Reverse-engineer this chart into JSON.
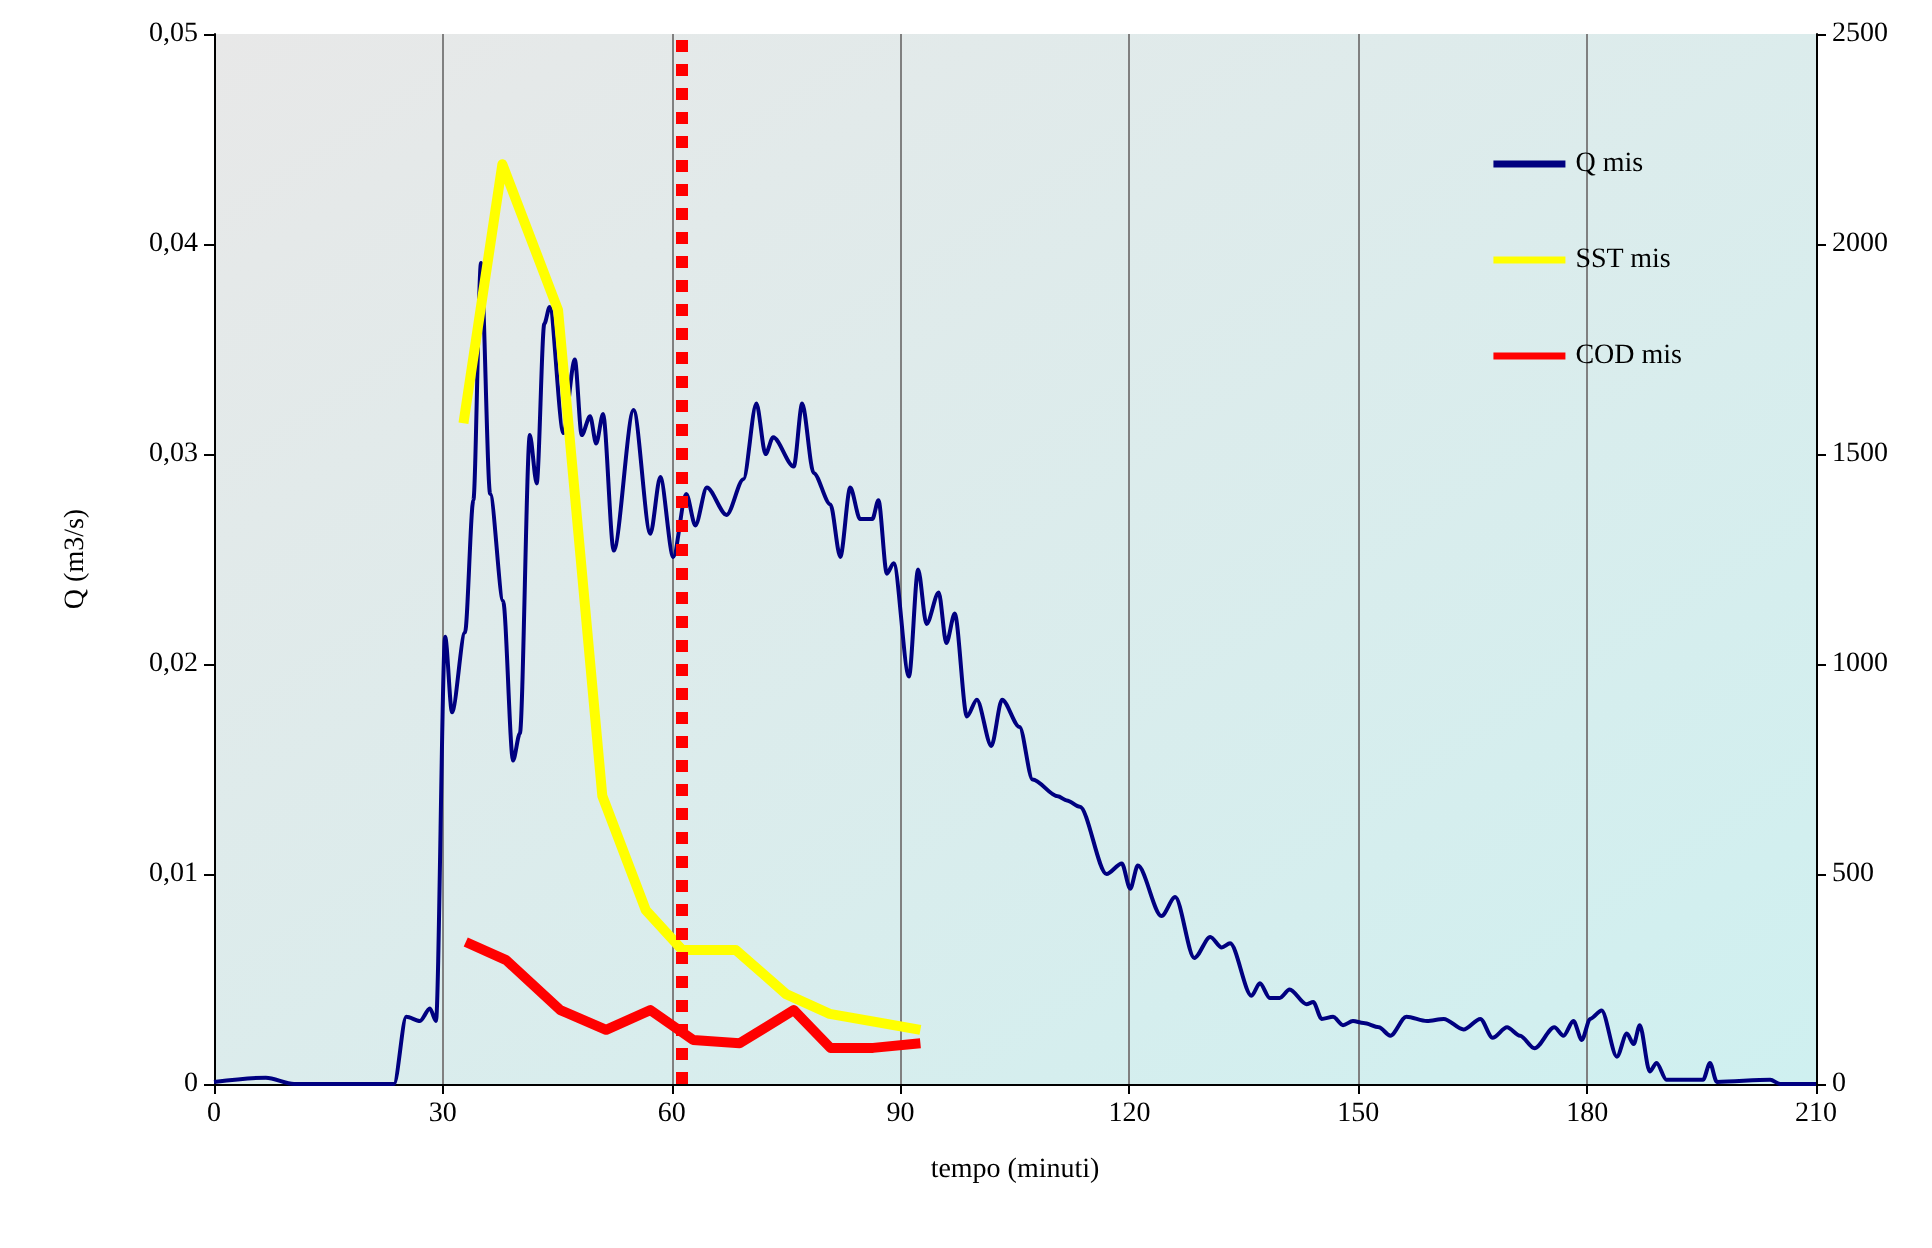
{
  "chart_data": {
    "type": "line",
    "xlabel": "tempo (minuti)",
    "ylabel": "Q (m3/s)",
    "xlim": [
      0,
      210
    ],
    "xticks": [
      0,
      30,
      60,
      90,
      120,
      150,
      180,
      210
    ],
    "ylim": [
      0,
      0.05
    ],
    "yticks": [
      {
        "value": 0,
        "label": "0"
      },
      {
        "value": 0.01,
        "label": "0,01"
      },
      {
        "value": 0.02,
        "label": "0,02"
      },
      {
        "value": 0.03,
        "label": "0,03"
      },
      {
        "value": 0.04,
        "label": "0,04"
      },
      {
        "value": 0.05,
        "label": "0,05"
      }
    ],
    "y2lim": [
      0,
      2500
    ],
    "y2ticks": [
      0,
      500,
      1000,
      1500,
      2000,
      2500
    ],
    "grid": "x",
    "legend": "top right",
    "marker": "none",
    "line_style": "solid",
    "ref_lines": [
      {
        "axis": "x",
        "value": 61.3,
        "color": "#ff0000",
        "line_style": "dotted"
      }
    ],
    "series": [
      {
        "name": "Q mis",
        "color": "#000080",
        "x": [
          0,
          6.8,
          10.5,
          23.6,
          25.2,
          27.0,
          28.3,
          29.1,
          30.3,
          31.2,
          32.9,
          34.0,
          35.0,
          36.2,
          37.9,
          39.2,
          40.1,
          41.4,
          42.3,
          43.3,
          44.0,
          45.8,
          47.3,
          48.2,
          49.3,
          50.1,
          51.0,
          52.4,
          55.0,
          57.2,
          58.5,
          60.2,
          61.9,
          63.1,
          64.6,
          67.2,
          69.4,
          71.1,
          72.3,
          73.3,
          76.0,
          77.1,
          78.6,
          80.8,
          82.1,
          83.4,
          84.7,
          86.3,
          87.1,
          88.2,
          89.1,
          91.1,
          92.3,
          93.4,
          95.0,
          96.0,
          97.1,
          98.7,
          100.0,
          101.9,
          103.3,
          105.6,
          107.3,
          110.6,
          111.8,
          113.5,
          117.0,
          119.0,
          120.1,
          121.1,
          124.2,
          126.0,
          128.5,
          130.6,
          132.1,
          133.2,
          136.0,
          137.1,
          138.4,
          139.7,
          141.0,
          143.2,
          144.1,
          145.2,
          146.7,
          148.0,
          149.3,
          150.7,
          152.7,
          154.2,
          156.3,
          159.0,
          161.2,
          163.8,
          166.0,
          167.6,
          169.5,
          171.2,
          173.1,
          175.7,
          176.9,
          178.2,
          179.3,
          180.4,
          181.9,
          183.9,
          185.2,
          186.1,
          186.9,
          188.2,
          189.1,
          190.4,
          195.2,
          196.1,
          197.0,
          204.0,
          205.3,
          210
        ],
        "values": [
          0.0001,
          0.0003,
          0,
          0,
          0.0032,
          0.003,
          0.0036,
          0.003,
          0.0213,
          0.0177,
          0.0215,
          0.0278,
          0.0391,
          0.0281,
          0.023,
          0.0154,
          0.0167,
          0.0309,
          0.0286,
          0.0362,
          0.037,
          0.031,
          0.0345,
          0.0309,
          0.0318,
          0.0305,
          0.0319,
          0.0254,
          0.0321,
          0.0262,
          0.0289,
          0.0251,
          0.0281,
          0.0266,
          0.0284,
          0.0271,
          0.0288,
          0.0324,
          0.03,
          0.0308,
          0.0294,
          0.0324,
          0.0291,
          0.0276,
          0.0251,
          0.0284,
          0.0269,
          0.0269,
          0.0278,
          0.0243,
          0.0248,
          0.0194,
          0.0245,
          0.0219,
          0.0234,
          0.021,
          0.0224,
          0.0175,
          0.0183,
          0.0161,
          0.0183,
          0.017,
          0.0145,
          0.0137,
          0.0135,
          0.0132,
          0.01,
          0.0105,
          0.0093,
          0.0104,
          0.008,
          0.0089,
          0.006,
          0.007,
          0.0065,
          0.0067,
          0.0042,
          0.0048,
          0.0041,
          0.0041,
          0.0045,
          0.0038,
          0.0039,
          0.0031,
          0.0032,
          0.0028,
          0.003,
          0.0029,
          0.0027,
          0.0023,
          0.0032,
          0.003,
          0.0031,
          0.0026,
          0.0031,
          0.0022,
          0.0027,
          0.0023,
          0.0017,
          0.0027,
          0.0023,
          0.003,
          0.0021,
          0.0031,
          0.0035,
          0.0013,
          0.0024,
          0.0019,
          0.0028,
          0.0006,
          0.001,
          0.0002,
          0.0002,
          0.001,
          0.0001,
          0.0002,
          0,
          0
        ]
      },
      {
        "name": "SST mis",
        "color": "#ffff00",
        "axis": "y2",
        "x": [
          32.7,
          37.8,
          45.1,
          50.9,
          56.6,
          61.4,
          68.4,
          75.0,
          80.7,
          92.6
        ],
        "values": [
          1573,
          2190,
          1843,
          686,
          414,
          319,
          319,
          214,
          167,
          129
        ]
      },
      {
        "name": "COD mis",
        "color": "#ff0000",
        "axis": "y2",
        "x": [
          33.0,
          38.3,
          45.4,
          51.4,
          57.2,
          62.8,
          68.9,
          76.0,
          80.8,
          86.4,
          92.6
        ],
        "values": [
          338,
          295,
          176,
          129,
          176,
          105,
          97,
          176,
          86,
          86,
          97
        ]
      }
    ]
  }
}
